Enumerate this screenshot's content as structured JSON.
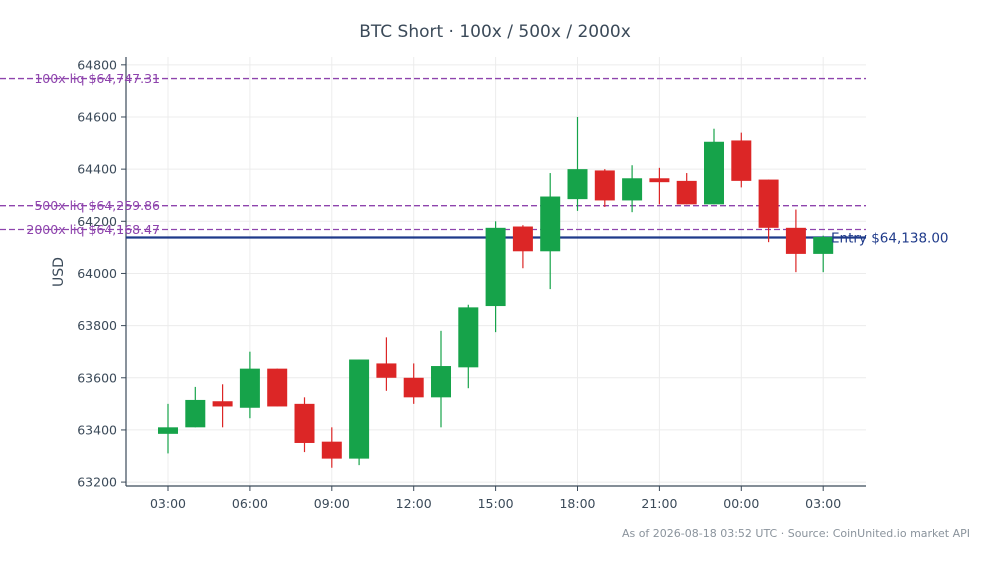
{
  "chart_data": {
    "type": "candlestick",
    "title": "BTC Short · 100x / 500x / 2000x",
    "ylabel": "USD",
    "ylim": [
      63185,
      64830
    ],
    "y_ticks": [
      63200,
      63400,
      63600,
      63800,
      64000,
      64200,
      64400,
      64600,
      64800
    ],
    "x_ticks": [
      {
        "label": "03:00",
        "index": 0
      },
      {
        "label": "06:00",
        "index": 3
      },
      {
        "label": "09:00",
        "index": 6
      },
      {
        "label": "12:00",
        "index": 9
      },
      {
        "label": "15:00",
        "index": 12
      },
      {
        "label": "18:00",
        "index": 15
      },
      {
        "label": "21:00",
        "index": 18
      },
      {
        "label": "00:00",
        "index": 21
      },
      {
        "label": "03:00",
        "index": 24
      }
    ],
    "grid": true,
    "up_color": "#16a34a",
    "down_color": "#dc2626",
    "candles": [
      {
        "open": 63385,
        "high": 63500,
        "low": 63310,
        "close": 63410
      },
      {
        "open": 63410,
        "high": 63565,
        "low": 63410,
        "close": 63515
      },
      {
        "open": 63510,
        "high": 63575,
        "low": 63410,
        "close": 63490
      },
      {
        "open": 63485,
        "high": 63700,
        "low": 63445,
        "close": 63635
      },
      {
        "open": 63635,
        "high": 63635,
        "low": 63490,
        "close": 63490
      },
      {
        "open": 63500,
        "high": 63525,
        "low": 63315,
        "close": 63350
      },
      {
        "open": 63355,
        "high": 63410,
        "low": 63255,
        "close": 63290
      },
      {
        "open": 63290,
        "high": 63670,
        "low": 63265,
        "close": 63670
      },
      {
        "open": 63655,
        "high": 63755,
        "low": 63550,
        "close": 63600
      },
      {
        "open": 63600,
        "high": 63655,
        "low": 63500,
        "close": 63525
      },
      {
        "open": 63525,
        "high": 63780,
        "low": 63410,
        "close": 63645
      },
      {
        "open": 63640,
        "high": 63880,
        "low": 63560,
        "close": 63870
      },
      {
        "open": 63875,
        "high": 64200,
        "low": 63775,
        "close": 64175
      },
      {
        "open": 64180,
        "high": 64185,
        "low": 64020,
        "close": 64085
      },
      {
        "open": 64085,
        "high": 64385,
        "low": 63940,
        "close": 64295
      },
      {
        "open": 64285,
        "high": 64600,
        "low": 64240,
        "close": 64400
      },
      {
        "open": 64395,
        "high": 64400,
        "low": 64255,
        "close": 64280
      },
      {
        "open": 64280,
        "high": 64415,
        "low": 64235,
        "close": 64365
      },
      {
        "open": 64365,
        "high": 64405,
        "low": 64265,
        "close": 64350
      },
      {
        "open": 64355,
        "high": 64385,
        "low": 64265,
        "close": 64265
      },
      {
        "open": 64265,
        "high": 64555,
        "low": 64265,
        "close": 64505
      },
      {
        "open": 64510,
        "high": 64540,
        "low": 64330,
        "close": 64355
      },
      {
        "open": 64360,
        "high": 64360,
        "low": 64120,
        "close": 64175
      },
      {
        "open": 64175,
        "high": 64245,
        "low": 64005,
        "close": 64075
      },
      {
        "open": 64075,
        "high": 64145,
        "low": 64005,
        "close": 64140
      }
    ],
    "reference_lines": [
      {
        "label": "100x liq $64,747.31",
        "value": 64747.31,
        "style": "dashed",
        "color": "#8e44ad",
        "label_side": "left"
      },
      {
        "label": "500x liq $64,259.86",
        "value": 64259.86,
        "style": "dashed",
        "color": "#8e44ad",
        "label_side": "left"
      },
      {
        "label": "2000x liq $64,168.47",
        "value": 64168.47,
        "style": "dashed",
        "color": "#8e44ad",
        "label_side": "left"
      },
      {
        "label": "Entry $64,138.00",
        "value": 64138.0,
        "style": "solid",
        "color": "#1f3a8a",
        "label_side": "right"
      }
    ],
    "footnote": "As of 2026-08-18 03:52 UTC · Source: CoinUnited.io market API"
  }
}
